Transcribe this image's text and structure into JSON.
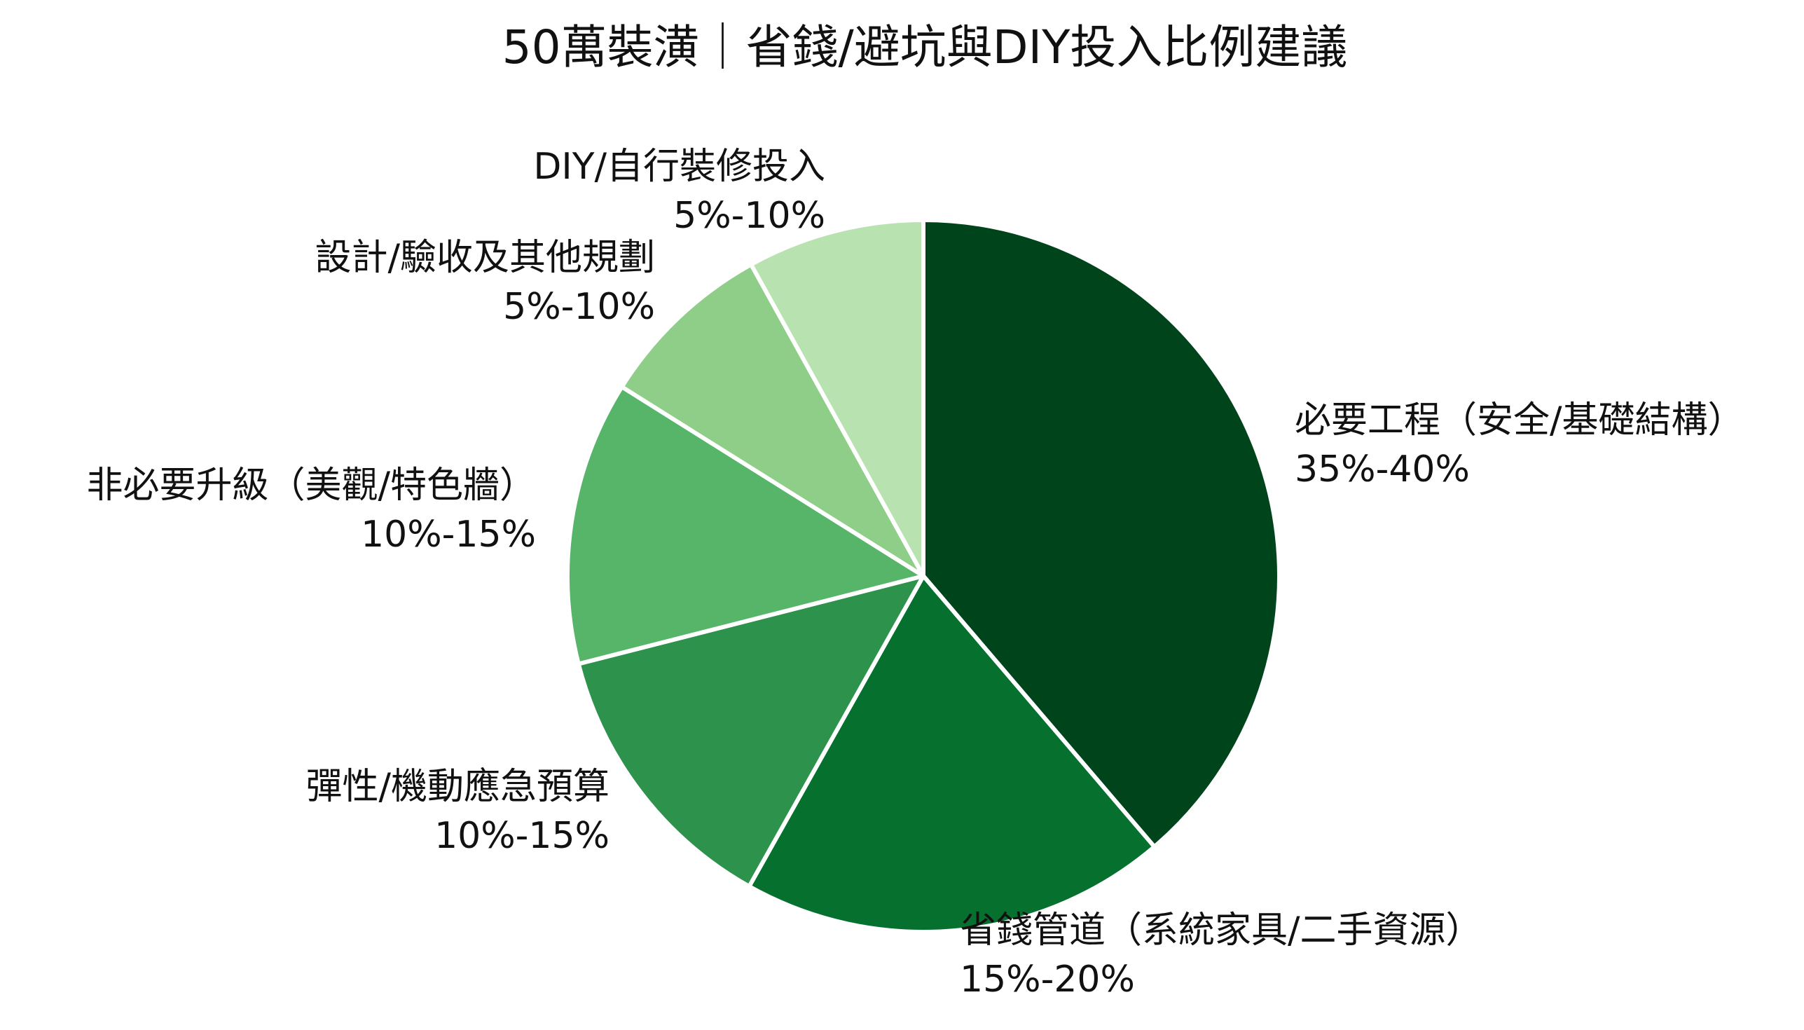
{
  "chart_data": {
    "type": "pie",
    "title": "50萬裝潢｜省錢/避坑與DIY投入比例建議",
    "start_angle_deg": 0,
    "direction": "clockwise",
    "series": [
      {
        "values": [
          40,
          20,
          13.3,
          13.3,
          8.3,
          8.3
        ],
        "slices": [
          {
            "label": "必要工程（安全/基礎結構）",
            "range": "35%-40%",
            "value": 40,
            "color": "#00441b"
          },
          {
            "label": "省錢管道（系統家具/二手資源）",
            "range": "15%-20%",
            "value": 20,
            "color": "#06702f"
          },
          {
            "label": "彈性/機動應急預算",
            "range": "10%-15%",
            "value": 13.3,
            "color": "#2d924c"
          },
          {
            "label": "非必要升級（美觀/特色牆）",
            "range": "10%-15%",
            "value": 13.3,
            "color": "#57b56a"
          },
          {
            "label": "設計/驗收及其他規劃",
            "range": "5%-10%",
            "value": 8.3,
            "color": "#8fce88"
          },
          {
            "label": "DIY/自行裝修投入",
            "range": "5%-10%",
            "value": 8.3,
            "color": "#b8e2b0"
          }
        ]
      }
    ]
  }
}
